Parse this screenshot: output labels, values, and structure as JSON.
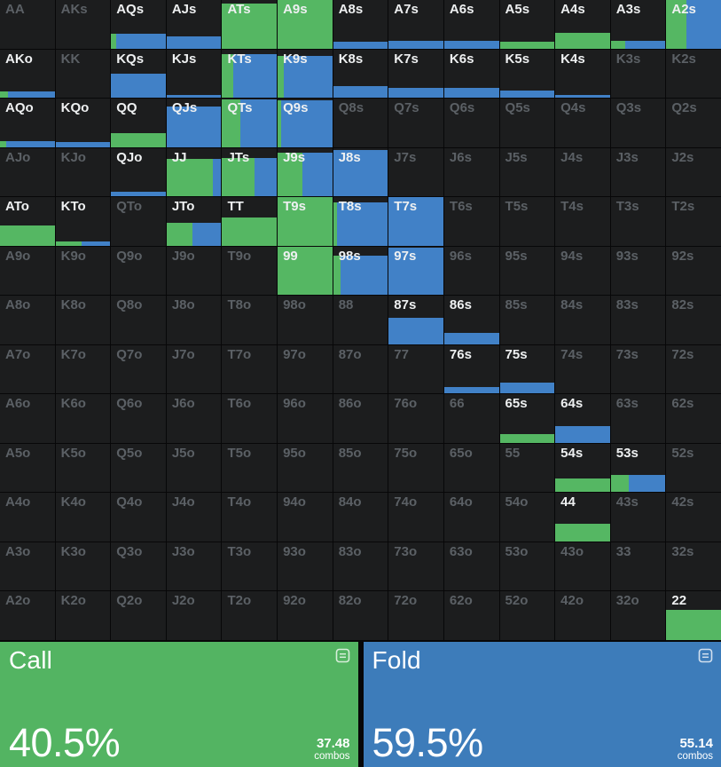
{
  "colors": {
    "page_bg": "#070708",
    "cell_bg": "#1c1d1e",
    "grid_green": "#55b763",
    "grid_blue": "#4181c7",
    "call_green": "#53b462",
    "fold_blue": "#3d7cba",
    "label_bright": "#eef0f1",
    "label_dim": "#5b6065"
  },
  "grid": {
    "cell_format": [
      "hand",
      "in_range",
      "fill_height_pct",
      "call_pct_of_fill"
    ],
    "rows": [
      [
        [
          "AA",
          0,
          0,
          0
        ],
        [
          "AKs",
          0,
          0,
          0
        ],
        [
          "AQs",
          1,
          30,
          10
        ],
        [
          "AJs",
          1,
          24,
          0
        ],
        [
          "ATs",
          1,
          93,
          100
        ],
        [
          "A9s",
          1,
          100,
          100
        ],
        [
          "A8s",
          1,
          13,
          0
        ],
        [
          "A7s",
          1,
          15,
          0
        ],
        [
          "A6s",
          1,
          15,
          0
        ],
        [
          "A5s",
          1,
          14,
          100
        ],
        [
          "A4s",
          1,
          33,
          100
        ],
        [
          "A3s",
          1,
          16,
          26
        ],
        [
          "A2s",
          1,
          100,
          36
        ]
      ],
      [
        [
          "AKo",
          1,
          13,
          14
        ],
        [
          "KK",
          0,
          0,
          0
        ],
        [
          "KQs",
          1,
          50,
          0
        ],
        [
          "KJs",
          1,
          5,
          0
        ],
        [
          "KTs",
          1,
          90,
          20
        ],
        [
          "K9s",
          1,
          86,
          12
        ],
        [
          "K8s",
          1,
          24,
          0
        ],
        [
          "K7s",
          1,
          21,
          0
        ],
        [
          "K6s",
          1,
          21,
          0
        ],
        [
          "K5s",
          1,
          14,
          0
        ],
        [
          "K4s",
          1,
          5,
          0
        ],
        [
          "K3s",
          0,
          0,
          0
        ],
        [
          "K2s",
          0,
          0,
          0
        ]
      ],
      [
        [
          "AQo",
          1,
          12,
          11
        ],
        [
          "KQo",
          1,
          11,
          0
        ],
        [
          "QQ",
          1,
          29,
          100
        ],
        [
          "QJs",
          1,
          83,
          0
        ],
        [
          "QTs",
          1,
          98,
          34
        ],
        [
          "Q9s",
          1,
          96,
          7
        ],
        [
          "Q8s",
          0,
          0,
          0
        ],
        [
          "Q7s",
          0,
          0,
          0
        ],
        [
          "Q6s",
          0,
          0,
          0
        ],
        [
          "Q5s",
          0,
          0,
          0
        ],
        [
          "Q4s",
          0,
          0,
          0
        ],
        [
          "Q3s",
          0,
          0,
          0
        ],
        [
          "Q2s",
          0,
          0,
          0
        ]
      ],
      [
        [
          "AJo",
          0,
          0,
          0
        ],
        [
          "KJo",
          0,
          0,
          0
        ],
        [
          "QJo",
          1,
          10,
          0
        ],
        [
          "JJ",
          1,
          77,
          85
        ],
        [
          "JTs",
          1,
          80,
          59
        ],
        [
          "J9s",
          1,
          90,
          45
        ],
        [
          "J8s",
          1,
          95,
          0
        ],
        [
          "J7s",
          0,
          0,
          0
        ],
        [
          "J6s",
          0,
          0,
          0
        ],
        [
          "J5s",
          0,
          0,
          0
        ],
        [
          "J4s",
          0,
          0,
          0
        ],
        [
          "J3s",
          0,
          0,
          0
        ],
        [
          "J2s",
          0,
          0,
          0
        ]
      ],
      [
        [
          "ATo",
          1,
          42,
          100
        ],
        [
          "KTo",
          1,
          9,
          48
        ],
        [
          "QTo",
          0,
          0,
          0
        ],
        [
          "JTo",
          1,
          48,
          47
        ],
        [
          "TT",
          1,
          59,
          100
        ],
        [
          "T9s",
          1,
          100,
          100
        ],
        [
          "T8s",
          1,
          90,
          7
        ],
        [
          "T7s",
          1,
          100,
          0
        ],
        [
          "T6s",
          0,
          0,
          0
        ],
        [
          "T5s",
          0,
          0,
          0
        ],
        [
          "T4s",
          0,
          0,
          0
        ],
        [
          "T3s",
          0,
          0,
          0
        ],
        [
          "T2s",
          0,
          0,
          0
        ]
      ],
      [
        [
          "A9o",
          0,
          0,
          0
        ],
        [
          "K9o",
          0,
          0,
          0
        ],
        [
          "Q9o",
          0,
          0,
          0
        ],
        [
          "J9o",
          0,
          0,
          0
        ],
        [
          "T9o",
          0,
          0,
          0
        ],
        [
          "99",
          1,
          100,
          100
        ],
        [
          "98s",
          1,
          82,
          14
        ],
        [
          "97s",
          1,
          98,
          0
        ],
        [
          "96s",
          0,
          0,
          0
        ],
        [
          "95s",
          0,
          0,
          0
        ],
        [
          "94s",
          0,
          0,
          0
        ],
        [
          "93s",
          0,
          0,
          0
        ],
        [
          "92s",
          0,
          0,
          0
        ]
      ],
      [
        [
          "A8o",
          0,
          0,
          0
        ],
        [
          "K8o",
          0,
          0,
          0
        ],
        [
          "Q8o",
          0,
          0,
          0
        ],
        [
          "J8o",
          0,
          0,
          0
        ],
        [
          "T8o",
          0,
          0,
          0
        ],
        [
          "98o",
          0,
          0,
          0
        ],
        [
          "88",
          0,
          0,
          0
        ],
        [
          "87s",
          1,
          54,
          0
        ],
        [
          "86s",
          1,
          23,
          0
        ],
        [
          "85s",
          0,
          0,
          0
        ],
        [
          "84s",
          0,
          0,
          0
        ],
        [
          "83s",
          0,
          0,
          0
        ],
        [
          "82s",
          0,
          0,
          0
        ]
      ],
      [
        [
          "A7o",
          0,
          0,
          0
        ],
        [
          "K7o",
          0,
          0,
          0
        ],
        [
          "Q7o",
          0,
          0,
          0
        ],
        [
          "J7o",
          0,
          0,
          0
        ],
        [
          "T7o",
          0,
          0,
          0
        ],
        [
          "97o",
          0,
          0,
          0
        ],
        [
          "87o",
          0,
          0,
          0
        ],
        [
          "77",
          0,
          0,
          0
        ],
        [
          "76s",
          1,
          13,
          0
        ],
        [
          "75s",
          1,
          23,
          0
        ],
        [
          "74s",
          0,
          0,
          0
        ],
        [
          "73s",
          0,
          0,
          0
        ],
        [
          "72s",
          0,
          0,
          0
        ]
      ],
      [
        [
          "A6o",
          0,
          0,
          0
        ],
        [
          "K6o",
          0,
          0,
          0
        ],
        [
          "Q6o",
          0,
          0,
          0
        ],
        [
          "J6o",
          0,
          0,
          0
        ],
        [
          "T6o",
          0,
          0,
          0
        ],
        [
          "96o",
          0,
          0,
          0
        ],
        [
          "86o",
          0,
          0,
          0
        ],
        [
          "76o",
          0,
          0,
          0
        ],
        [
          "66",
          0,
          0,
          0
        ],
        [
          "65s",
          1,
          18,
          100
        ],
        [
          "64s",
          1,
          34,
          0
        ],
        [
          "63s",
          0,
          0,
          0
        ],
        [
          "62s",
          0,
          0,
          0
        ]
      ],
      [
        [
          "A5o",
          0,
          0,
          0
        ],
        [
          "K5o",
          0,
          0,
          0
        ],
        [
          "Q5o",
          0,
          0,
          0
        ],
        [
          "J5o",
          0,
          0,
          0
        ],
        [
          "T5o",
          0,
          0,
          0
        ],
        [
          "95o",
          0,
          0,
          0
        ],
        [
          "85o",
          0,
          0,
          0
        ],
        [
          "75o",
          0,
          0,
          0
        ],
        [
          "65o",
          0,
          0,
          0
        ],
        [
          "55",
          0,
          0,
          0
        ],
        [
          "54s",
          1,
          28,
          100
        ],
        [
          "53s",
          1,
          35,
          33
        ],
        [
          "52s",
          0,
          0,
          0
        ]
      ],
      [
        [
          "A4o",
          0,
          0,
          0
        ],
        [
          "K4o",
          0,
          0,
          0
        ],
        [
          "Q4o",
          0,
          0,
          0
        ],
        [
          "J4o",
          0,
          0,
          0
        ],
        [
          "T4o",
          0,
          0,
          0
        ],
        [
          "94o",
          0,
          0,
          0
        ],
        [
          "84o",
          0,
          0,
          0
        ],
        [
          "74o",
          0,
          0,
          0
        ],
        [
          "64o",
          0,
          0,
          0
        ],
        [
          "54o",
          0,
          0,
          0
        ],
        [
          "44",
          1,
          37,
          100
        ],
        [
          "43s",
          0,
          0,
          0
        ],
        [
          "42s",
          0,
          0,
          0
        ]
      ],
      [
        [
          "A3o",
          0,
          0,
          0
        ],
        [
          "K3o",
          0,
          0,
          0
        ],
        [
          "Q3o",
          0,
          0,
          0
        ],
        [
          "J3o",
          0,
          0,
          0
        ],
        [
          "T3o",
          0,
          0,
          0
        ],
        [
          "93o",
          0,
          0,
          0
        ],
        [
          "83o",
          0,
          0,
          0
        ],
        [
          "73o",
          0,
          0,
          0
        ],
        [
          "63o",
          0,
          0,
          0
        ],
        [
          "53o",
          0,
          0,
          0
        ],
        [
          "43o",
          0,
          0,
          0
        ],
        [
          "33",
          0,
          0,
          0
        ],
        [
          "32s",
          0,
          0,
          0
        ]
      ],
      [
        [
          "A2o",
          0,
          0,
          0
        ],
        [
          "K2o",
          0,
          0,
          0
        ],
        [
          "Q2o",
          0,
          0,
          0
        ],
        [
          "J2o",
          0,
          0,
          0
        ],
        [
          "T2o",
          0,
          0,
          0
        ],
        [
          "92o",
          0,
          0,
          0
        ],
        [
          "82o",
          0,
          0,
          0
        ],
        [
          "72o",
          0,
          0,
          0
        ],
        [
          "62o",
          0,
          0,
          0
        ],
        [
          "52o",
          0,
          0,
          0
        ],
        [
          "42o",
          0,
          0,
          0
        ],
        [
          "32o",
          0,
          0,
          0
        ],
        [
          "22",
          1,
          63,
          100
        ]
      ]
    ]
  },
  "actions": {
    "call": {
      "label": "Call",
      "percent": "40.5%",
      "combos": "37.48",
      "combos_label": "combos",
      "icon": "list-icon"
    },
    "fold": {
      "label": "Fold",
      "percent": "59.5%",
      "combos": "55.14",
      "combos_label": "combos",
      "icon": "list-icon"
    }
  }
}
